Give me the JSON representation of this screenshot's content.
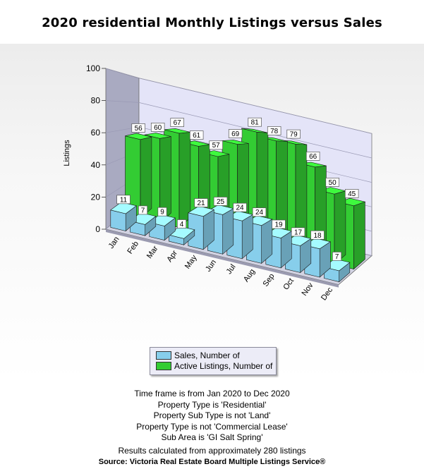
{
  "chart_data": {
    "type": "bar",
    "title": "2020 residential Monthly Listings versus Sales",
    "ylabel": "Listings",
    "xlabel": "",
    "ylim": [
      0,
      100
    ],
    "yticks": [
      0,
      20,
      40,
      60,
      80,
      100
    ],
    "categories": [
      "Jan",
      "Feb",
      "Mar",
      "Apr",
      "May",
      "Jun",
      "Jul",
      "Aug",
      "Sep",
      "Oct",
      "Nov",
      "Dec"
    ],
    "series": [
      {
        "name": "Sales, Number of",
        "color": "#87ceeb",
        "values": [
          11,
          7,
          9,
          4,
          21,
          25,
          24,
          24,
          19,
          17,
          18,
          7
        ]
      },
      {
        "name": "Active Listings, Number of",
        "color": "#33cc33",
        "values": [
          56,
          60,
          67,
          61,
          57,
          69,
          81,
          78,
          79,
          66,
          50,
          45
        ]
      }
    ],
    "legend_position": "bottom-center",
    "grid": true
  },
  "footer": {
    "lines": [
      "Time frame is from Jan 2020 to Dec 2020",
      "Property Type is 'Residential'",
      "Property Sub Type is not 'Land'",
      "Property Type is not 'Commercial Lease'",
      "Sub Area is 'GI Salt Spring'"
    ],
    "results": "Results calculated from approximately 280 listings",
    "source": "Source: Victoria Real Estate Board Multiple Listings Service®"
  }
}
